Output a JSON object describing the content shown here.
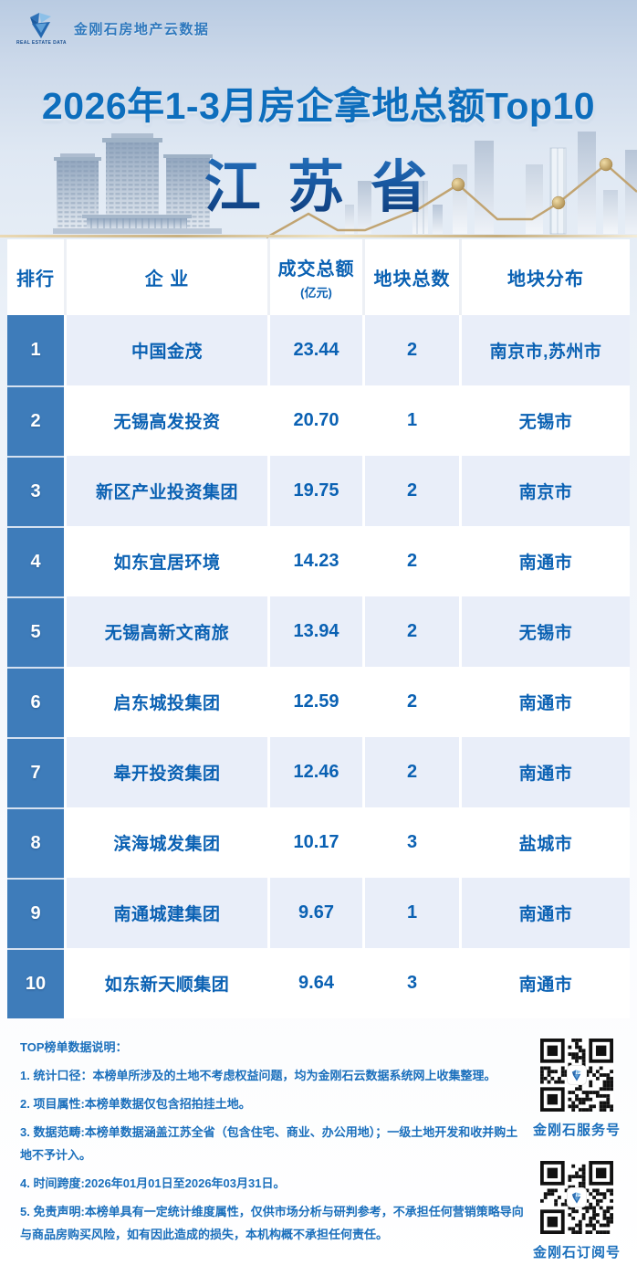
{
  "brand": {
    "logo_text": "金刚石房地产云数据",
    "logo_caption": "REAL ESTATE DATA"
  },
  "header": {
    "title": "2026年1-3月房企拿地总额Top10",
    "region": "江 苏 省"
  },
  "table": {
    "columns": [
      "排行",
      "企 业",
      "成交总额",
      "地块总数",
      "地块分布"
    ],
    "amount_unit": "(亿元)",
    "rows": [
      {
        "rank": "1",
        "company": "中国金茂",
        "amount": "23.44",
        "plots": "2",
        "cities": "南京市,苏州市"
      },
      {
        "rank": "2",
        "company": "无锡高发投资",
        "amount": "20.70",
        "plots": "1",
        "cities": "无锡市"
      },
      {
        "rank": "3",
        "company": "新区产业投资集团",
        "amount": "19.75",
        "plots": "2",
        "cities": "南京市"
      },
      {
        "rank": "4",
        "company": "如东宜居环境",
        "amount": "14.23",
        "plots": "2",
        "cities": "南通市"
      },
      {
        "rank": "5",
        "company": "无锡高新文商旅",
        "amount": "13.94",
        "plots": "2",
        "cities": "无锡市"
      },
      {
        "rank": "6",
        "company": "启东城投集团",
        "amount": "12.59",
        "plots": "2",
        "cities": "南通市"
      },
      {
        "rank": "7",
        "company": "皋开投资集团",
        "amount": "12.46",
        "plots": "2",
        "cities": "南通市"
      },
      {
        "rank": "8",
        "company": "滨海城发集团",
        "amount": "10.17",
        "plots": "3",
        "cities": "盐城市"
      },
      {
        "rank": "9",
        "company": "南通城建集团",
        "amount": "9.67",
        "plots": "1",
        "cities": "南通市"
      },
      {
        "rank": "10",
        "company": "如东新天顺集团",
        "amount": "9.64",
        "plots": "3",
        "cities": "南通市"
      }
    ]
  },
  "footer": {
    "notes_title": "TOP榜单数据说明：",
    "notes": [
      "1. 统计口径：本榜单所涉及的土地不考虑权益问题，均为金刚石云数据系统网上收集整理。",
      "2. 项目属性:本榜单数据仅包含招拍挂土地。",
      "3. 数据范畴:本榜单数据涵盖江苏全省（包含住宅、商业、办公用地）；一级土地开发和收并购土地不予计入。",
      "4. 时间跨度:2026年01月01日至2026年03月31日。",
      "5. 免责声明:本榜单具有一定统计维度属性，仅供市场分析与研判参考，不承担任何营销策略导向与商品房购买风险，如有因此造成的损失，本机构概不承担任何责任。"
    ],
    "qr_codes": [
      {
        "label": "金刚石服务号"
      },
      {
        "label": "金刚石订阅号"
      }
    ]
  },
  "colors": {
    "title_blue": "#0d6ebd",
    "table_text_blue": "#0a61b3",
    "rank_column_blue": "#3e7cba",
    "alt_row_blue": "#e9eef9",
    "region_gradient_top": "#2a77c2",
    "region_gradient_bottom": "#0f3e7d",
    "gold_accent": "#c3a36b"
  },
  "chart_data": {
    "type": "table",
    "title": "2026年1-3月房企拿地总额Top10",
    "region": "江苏省",
    "period": "2026年01月01日至2026年03月31日",
    "columns": [
      "排行",
      "企业",
      "成交总额(亿元)",
      "地块总数",
      "地块分布"
    ],
    "rows": [
      [
        1,
        "中国金茂",
        23.44,
        2,
        "南京市,苏州市"
      ],
      [
        2,
        "无锡高发投资",
        20.7,
        1,
        "无锡市"
      ],
      [
        3,
        "新区产业投资集团",
        19.75,
        2,
        "南京市"
      ],
      [
        4,
        "如东宜居环境",
        14.23,
        2,
        "南通市"
      ],
      [
        5,
        "无锡高新文商旅",
        13.94,
        2,
        "无锡市"
      ],
      [
        6,
        "启东城投集团",
        12.59,
        2,
        "南通市"
      ],
      [
        7,
        "皋开投资集团",
        12.46,
        2,
        "南通市"
      ],
      [
        8,
        "滨海城发集团",
        10.17,
        3,
        "盐城市"
      ],
      [
        9,
        "南通城建集团",
        9.67,
        1,
        "南通市"
      ],
      [
        10,
        "如东新天顺集团",
        9.64,
        3,
        "南通市"
      ]
    ]
  }
}
